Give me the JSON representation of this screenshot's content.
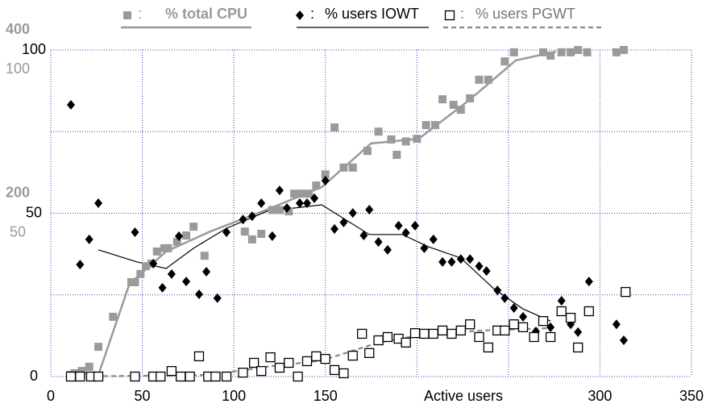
{
  "chart_data": {
    "type": "scatter",
    "x_label": "Active users",
    "legend_separator": ":",
    "xlim": [
      0,
      350
    ],
    "xticks": [
      0,
      50,
      100,
      150,
      {
        "value": 200,
        "label": null
      },
      {
        "value": 250,
        "label": null
      },
      300,
      350
    ],
    "ylim": [
      0,
      100
    ],
    "yticks": [
      0,
      {
        "value": 25,
        "label": null
      },
      50,
      {
        "value": 75,
        "label": null
      },
      100
    ],
    "y2lim": [
      0,
      400
    ],
    "y2ticks": [
      200,
      400
    ],
    "y3lim": [
      0,
      100
    ],
    "y3ticks": [
      50,
      100
    ],
    "grid": true,
    "series": [
      {
        "name": "% total CPU",
        "color": "#9a9a9a",
        "marker": "square",
        "x": [
          11,
          13,
          17,
          21,
          26,
          34,
          44,
          46,
          49,
          52,
          55,
          58,
          62,
          64,
          69,
          74,
          78,
          84,
          106,
          110,
          115,
          121,
          125,
          130,
          133,
          137,
          141,
          145,
          150,
          155,
          160,
          165,
          173,
          179,
          186,
          189,
          194,
          200,
          205,
          210,
          214,
          220,
          224,
          229,
          234,
          239,
          248,
          253,
          269,
          273,
          279,
          284,
          288,
          293,
          309,
          313
        ],
        "values": [
          0.5,
          1,
          1.7,
          3,
          9.1,
          18.3,
          28.9,
          28.9,
          31.4,
          33.8,
          34.6,
          38.3,
          39.3,
          39.3,
          41.2,
          43.2,
          45.9,
          37,
          44.4,
          42,
          43.7,
          51,
          51,
          50.6,
          56,
          56,
          56,
          58.5,
          61.9,
          76.3,
          64,
          64,
          69.1,
          75,
          72.6,
          67.9,
          72,
          72.8,
          77,
          77,
          84.9,
          83.2,
          81.7,
          85.2,
          90.9,
          90.9,
          96.5,
          99.3,
          99.3,
          98.3,
          99.3,
          99.3,
          100,
          99.3,
          99.3,
          100
        ],
        "trend_x": [
          26,
          43,
          63,
          87,
          118,
          148,
          175,
          201,
          228,
          254,
          276
        ],
        "trend_values": [
          0.5,
          28.4,
          38.3,
          44.4,
          51.1,
          58,
          71.4,
          72.8,
          84.4,
          96.8,
          99.5
        ]
      },
      {
        "name": "% users IOWT",
        "color": "#000000",
        "marker": "diamond",
        "x": [
          11,
          16,
          21,
          26,
          46,
          56,
          61,
          66,
          70,
          74,
          81,
          85,
          91,
          96,
          105,
          110,
          115,
          121,
          125,
          129,
          136,
          140,
          144,
          150,
          155,
          160,
          165,
          171,
          174,
          179,
          184,
          190,
          194,
          199,
          204,
          209,
          214,
          219,
          224,
          229,
          234,
          238,
          244,
          248,
          253,
          258,
          265,
          273,
          279,
          284,
          288,
          294,
          309,
          313
        ],
        "values": [
          83.2,
          34.3,
          42,
          53.1,
          44.2,
          34.6,
          27.2,
          31.4,
          43,
          29.1,
          25.2,
          32.1,
          24,
          44.2,
          48.1,
          49.1,
          53.1,
          43,
          57,
          51.6,
          53.1,
          53.1,
          54.6,
          60,
          45.2,
          47.2,
          50.1,
          43.2,
          51.1,
          41.2,
          38.8,
          46.2,
          44,
          46.2,
          39.3,
          42,
          35.1,
          35.1,
          36,
          36,
          33.8,
          32.3,
          26.4,
          24,
          21,
          18.3,
          13.8,
          15.1,
          23.2,
          16,
          13.6,
          29.1,
          16,
          11.1
        ],
        "trend_x": [
          26,
          47,
          63,
          78,
          96,
          118,
          148,
          174,
          192,
          206,
          224,
          242,
          258,
          273
        ],
        "trend_values": [
          38.8,
          35.1,
          33.1,
          39.3,
          45.4,
          50.6,
          52.6,
          43.5,
          43.5,
          39.8,
          36.3,
          26.9,
          20.7,
          17
        ]
      },
      {
        "name": "% users PGWT",
        "color": "#777777",
        "marker": "open-square",
        "x": [
          11,
          16,
          22,
          26,
          46,
          56,
          60,
          66,
          71,
          76,
          81,
          86,
          90,
          96,
          105,
          111,
          115,
          120,
          125,
          130,
          135,
          140,
          145,
          150,
          155,
          160,
          165,
          170,
          174,
          179,
          184,
          190,
          194,
          199,
          204,
          209,
          214,
          219,
          224,
          229,
          234,
          239,
          244,
          248,
          253,
          258,
          264,
          269,
          273,
          279,
          284,
          288,
          294,
          314
        ],
        "values": [
          0,
          0,
          0,
          0,
          0,
          0,
          0,
          1.7,
          0,
          0,
          6.2,
          0,
          0,
          0,
          1.2,
          4.2,
          1.7,
          5.9,
          2.7,
          4.2,
          0,
          4.7,
          6.2,
          5.4,
          2,
          1,
          6.4,
          13.1,
          7.2,
          11.1,
          12.1,
          11.6,
          10.4,
          13.3,
          13.1,
          13.1,
          14.1,
          13.1,
          14.1,
          16,
          12.1,
          8.9,
          14.1,
          14.1,
          16,
          15.1,
          12.1,
          17,
          12.1,
          20,
          18,
          8.9,
          20,
          25.9
        ],
        "trend_x": [
          11,
          87,
          118,
          148,
          179,
          206,
          236,
          272
        ],
        "trend_values": [
          0,
          0.5,
          3,
          4.9,
          10.4,
          13.1,
          14.1,
          14.8
        ]
      }
    ]
  }
}
